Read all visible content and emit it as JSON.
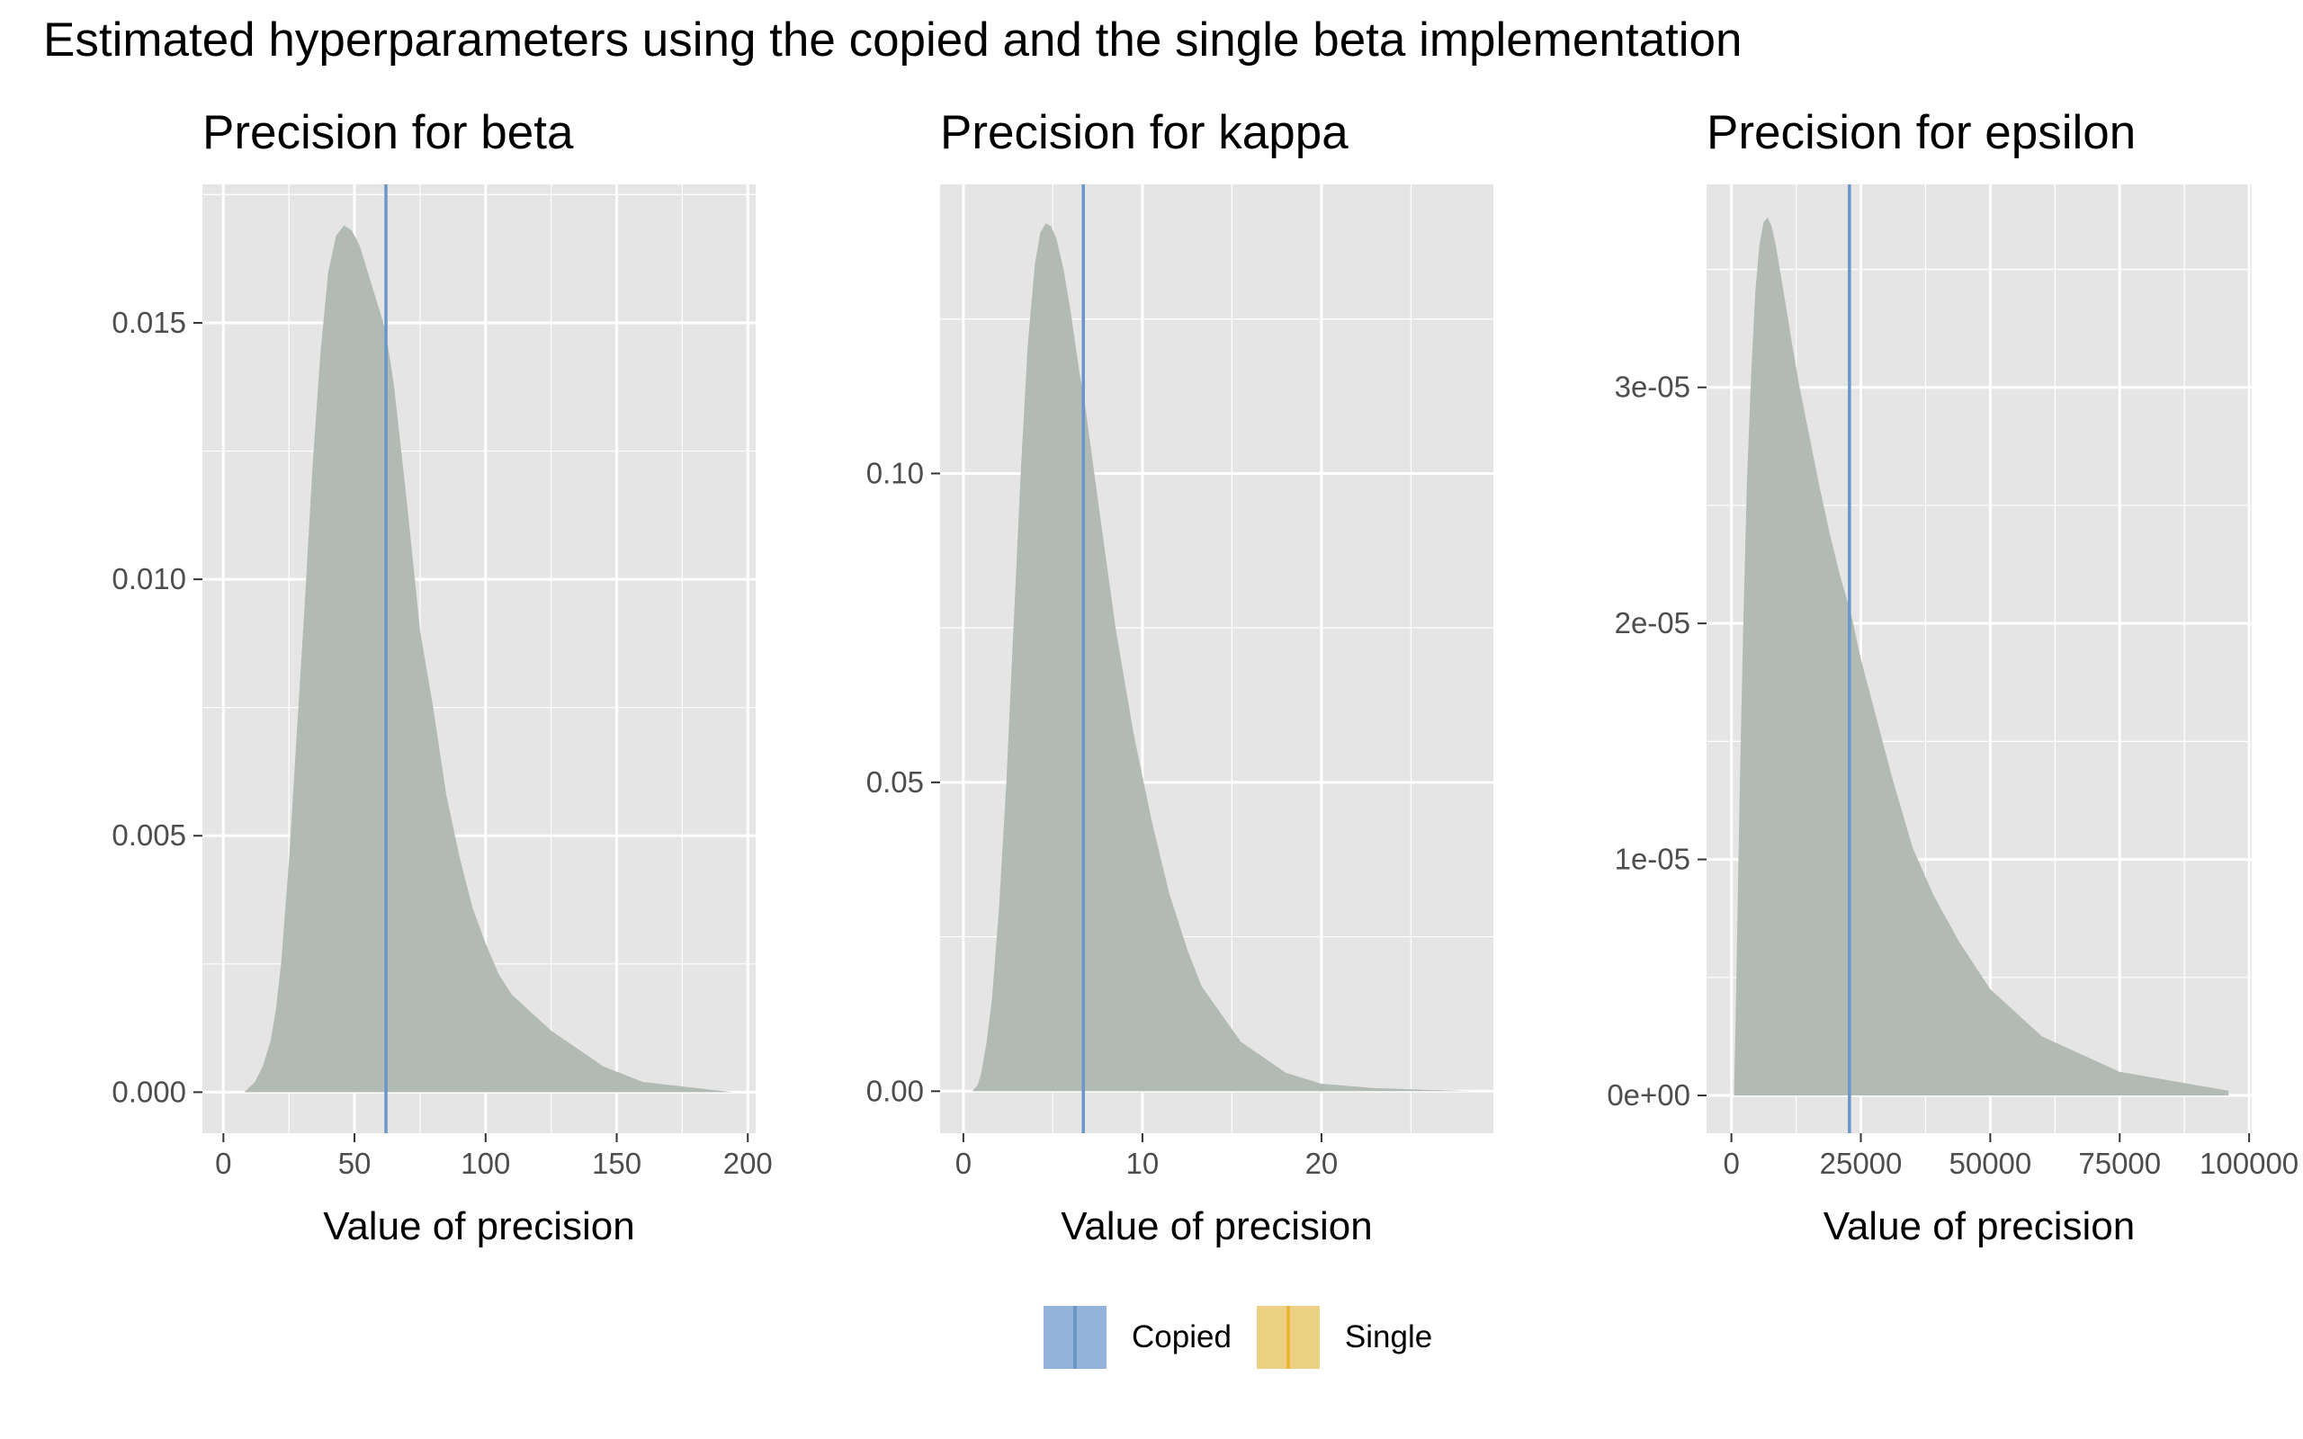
{
  "title": "Estimated hyperparameters using the copied and the single beta implementation",
  "colors": {
    "panel_bg": "#e5e5e5",
    "grid": "#ffffff",
    "density_fill": "#b1bab3",
    "copied": "#6b96c8",
    "copied_fill": "#93b3da",
    "single": "#e8b73a",
    "single_fill": "#ecd083"
  },
  "legend": {
    "items": [
      {
        "label": "Copied",
        "color": "#6b96c8",
        "fill": "#93b3da"
      },
      {
        "label": "Single",
        "color": "#e8b73a",
        "fill": "#ecd083"
      }
    ]
  },
  "chart_data": [
    {
      "type": "area",
      "title": "Precision for beta",
      "xlabel": "Value of precision",
      "ylabel": "",
      "xlim": [
        -8,
        203
      ],
      "ylim": [
        -0.0008,
        0.0177
      ],
      "x_ticks": [
        0,
        50,
        100,
        150,
        200
      ],
      "x_tick_labels": [
        "0",
        "50",
        "100",
        "150",
        "200"
      ],
      "y_ticks": [
        0,
        0.005,
        0.01,
        0.015
      ],
      "y_tick_labels": [
        "0.000",
        "0.005",
        "0.010",
        "0.015"
      ],
      "density": {
        "x": [
          8,
          12,
          15,
          18,
          20,
          22,
          25,
          28,
          31,
          34,
          37,
          40,
          43,
          46,
          49,
          52,
          55,
          58,
          61,
          62,
          65,
          70,
          75,
          80,
          85,
          90,
          95,
          100,
          105,
          110,
          125,
          145,
          160,
          194
        ],
        "y": [
          0,
          0.0002,
          0.0005,
          0.001,
          0.0016,
          0.0025,
          0.0045,
          0.007,
          0.0095,
          0.0122,
          0.0144,
          0.016,
          0.0167,
          0.0169,
          0.0168,
          0.0165,
          0.016,
          0.0155,
          0.015,
          0.0148,
          0.0138,
          0.0115,
          0.009,
          0.0075,
          0.0058,
          0.0046,
          0.0036,
          0.0029,
          0.0023,
          0.0019,
          0.0012,
          0.0005,
          0.0002,
          0
        ]
      },
      "vlines": [
        {
          "series": "Copied",
          "x": 62
        }
      ]
    },
    {
      "type": "area",
      "title": "Precision for kappa",
      "xlabel": "Value of precision",
      "ylabel": "",
      "xlim": [
        -1.3,
        29.6
      ],
      "ylim": [
        -0.0068,
        0.1468
      ],
      "x_ticks": [
        0,
        10,
        20
      ],
      "x_tick_labels": [
        "0",
        "10",
        "20"
      ],
      "y_ticks": [
        0,
        0.05,
        0.1
      ],
      "y_tick_labels": [
        "0.00",
        "0.05",
        "0.10"
      ],
      "density": {
        "x": [
          0.5,
          0.8,
          1.0,
          1.3,
          1.6,
          2.0,
          2.4,
          2.8,
          3.2,
          3.6,
          4.0,
          4.3,
          4.6,
          4.9,
          5.2,
          5.6,
          6.0,
          6.5,
          6.8,
          7.5,
          8.5,
          9.5,
          10.5,
          11.5,
          12.5,
          13.3,
          15.5,
          18.0,
          20.0,
          23.0,
          26.0,
          28.5
        ],
        "y": [
          0,
          0.001,
          0.003,
          0.008,
          0.015,
          0.03,
          0.05,
          0.075,
          0.1,
          0.121,
          0.134,
          0.139,
          0.1405,
          0.14,
          0.138,
          0.133,
          0.126,
          0.116,
          0.111,
          0.096,
          0.075,
          0.058,
          0.044,
          0.032,
          0.023,
          0.017,
          0.008,
          0.003,
          0.0012,
          0.0005,
          0.0002,
          0
        ]
      },
      "vlines": [
        {
          "series": "Copied",
          "x": 6.7
        }
      ]
    },
    {
      "type": "area",
      "title": "Precision for epsilon",
      "xlabel": "Value of precision",
      "ylabel": "",
      "xlim": [
        -4800,
        100500
      ],
      "ylim": [
        -1.6e-06,
        3.86e-05
      ],
      "x_ticks": [
        0,
        25000,
        50000,
        75000,
        100000
      ],
      "x_tick_labels": [
        "0",
        "25000",
        "50000",
        "75000",
        "100000"
      ],
      "y_ticks": [
        0,
        1e-05,
        2e-05,
        3e-05
      ],
      "y_tick_labels": [
        "0e+00",
        "1e-05",
        "2e-05",
        "3e-05"
      ],
      "density": {
        "x": [
          500,
          800,
          1200,
          1700,
          2300,
          3000,
          3800,
          4600,
          5400,
          6200,
          7000,
          7800,
          8600,
          9500,
          10500,
          11600,
          13000,
          15000,
          17000,
          19000,
          21000,
          23000,
          25000,
          28000,
          31000,
          35000,
          39000,
          44000,
          50000,
          60000,
          75000,
          96000
        ],
        "y": [
          0,
          3e-06,
          8e-06,
          1.4e-05,
          2e-05,
          2.6e-05,
          3.05e-05,
          3.4e-05,
          3.6e-05,
          3.7e-05,
          3.72e-05,
          3.68e-05,
          3.6e-05,
          3.48e-05,
          3.35e-05,
          3.2e-05,
          3.02e-05,
          2.8e-05,
          2.58e-05,
          2.38e-05,
          2.2e-05,
          2.05e-05,
          1.85e-05,
          1.6e-05,
          1.35e-05,
          1.05e-05,
          8.5e-06,
          6.5e-06,
          4.5e-06,
          2.5e-06,
          1e-06,
          2e-07
        ]
      },
      "vlines": [
        {
          "series": "Copied",
          "x": 22800
        }
      ]
    }
  ]
}
